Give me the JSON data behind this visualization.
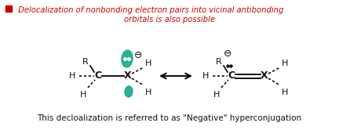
{
  "bg_color": "#ffffff",
  "title_line1": " Delocalization of nonbonding electron pairs into vicinal antibonding",
  "title_line2": "orbitals is also possible",
  "title_color": "#cc0000",
  "square_color": "#cc0000",
  "bottom_text": "This decloalization is referred to as \"Negative\" hyperconjugation",
  "bottom_text_color": "#111111",
  "teal_color": "#1aaa90",
  "bond_color": "#111111",
  "label_color": "#111111",
  "figw": 4.32,
  "figh": 1.66,
  "dpi": 100
}
